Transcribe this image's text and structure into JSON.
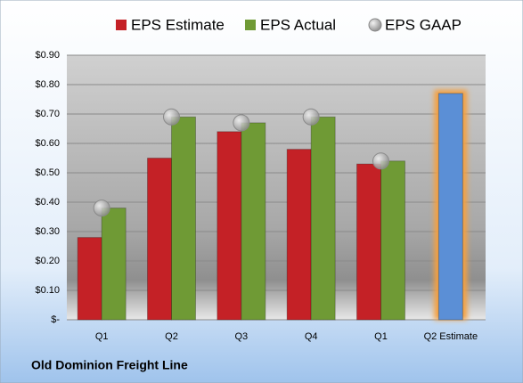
{
  "chart_data": {
    "type": "bar",
    "footer": "Old Dominion Freight Line",
    "categories": [
      "Q1",
      "Q2",
      "Q3",
      "Q4",
      "Q1",
      "Q2 Estimate"
    ],
    "series": [
      {
        "name": "EPS Estimate",
        "type": "bar",
        "color": "#c42126",
        "colors": [
          "#c42126",
          "#c42126",
          "#c42126",
          "#c42126",
          "#c42126",
          "#5b8fd6"
        ],
        "values": [
          0.28,
          0.55,
          0.64,
          0.58,
          0.53,
          0.77
        ]
      },
      {
        "name": "EPS Actual",
        "type": "bar",
        "color": "#6f9a35",
        "values": [
          0.38,
          0.69,
          0.67,
          0.69,
          0.54,
          null
        ]
      },
      {
        "name": "EPS GAAP",
        "type": "scatter",
        "color": "#a9a9a9",
        "values": [
          0.38,
          0.69,
          0.67,
          0.69,
          0.54,
          null
        ]
      }
    ],
    "ylim": [
      0,
      0.9
    ],
    "yticks": [
      {
        "value": 0,
        "label": "$-"
      },
      {
        "value": 0.1,
        "label": "$0.10"
      },
      {
        "value": 0.2,
        "label": "$0.20"
      },
      {
        "value": 0.3,
        "label": "$0.30"
      },
      {
        "value": 0.4,
        "label": "$0.40"
      },
      {
        "value": 0.5,
        "label": "$0.50"
      },
      {
        "value": 0.6,
        "label": "$0.60"
      },
      {
        "value": 0.7,
        "label": "$0.70"
      },
      {
        "value": 0.8,
        "label": "$0.80"
      },
      {
        "value": 0.9,
        "label": "$0.90"
      }
    ],
    "grid": true
  }
}
